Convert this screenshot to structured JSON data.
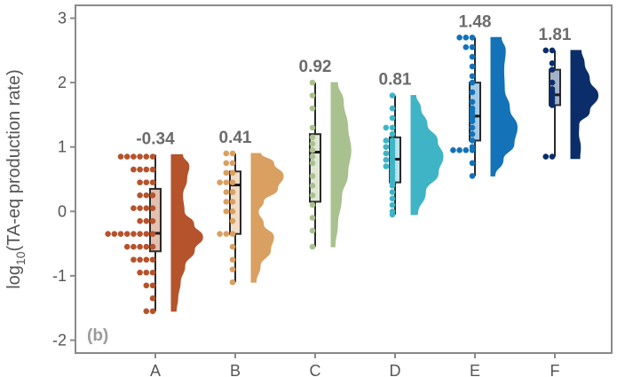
{
  "chart_data": {
    "type": "raincloud",
    "panel_label": "(b)",
    "ylabel": "log10(TA-eq production rate)",
    "ylabel_parts": {
      "base": "log",
      "sub": "10",
      "rest": "(TA-eq production rate)"
    },
    "ylim": [
      -2.2,
      3.2
    ],
    "yticks": [
      -2,
      -1,
      0,
      1,
      2,
      3
    ],
    "ytick_labels": [
      "-2",
      "-1",
      "0",
      "1",
      "2",
      "3"
    ],
    "grid": false,
    "categories": [
      "A",
      "B",
      "C",
      "D",
      "E",
      "F"
    ],
    "series": [
      {
        "category": "A",
        "color": "#b5532c",
        "median_label": "-0.34",
        "median": -0.34,
        "q1": -0.62,
        "q3": 0.35,
        "whisker_low": -1.55,
        "whisker_high": 0.88,
        "points": [
          0.85,
          0.85,
          0.85,
          0.85,
          0.85,
          0.85,
          0.65,
          0.65,
          0.65,
          0.65,
          0.45,
          0.45,
          0.45,
          0.25,
          0.25,
          0.25,
          0.05,
          0.05,
          0.05,
          0.05,
          -0.15,
          -0.15,
          -0.15,
          -0.35,
          -0.35,
          -0.35,
          -0.35,
          -0.35,
          -0.35,
          -0.35,
          -0.35,
          -0.55,
          -0.55,
          -0.55,
          -0.55,
          -0.55,
          -0.75,
          -0.75,
          -0.75,
          -0.75,
          -0.95,
          -0.95,
          -0.95,
          -1.15,
          -1.15,
          -1.35,
          -1.55,
          -1.55
        ],
        "density": [
          [
            -1.55,
            0.15
          ],
          [
            -1.35,
            0.2
          ],
          [
            -1.1,
            0.28
          ],
          [
            -0.85,
            0.42
          ],
          [
            -0.6,
            0.72
          ],
          [
            -0.4,
            0.98
          ],
          [
            -0.2,
            0.7
          ],
          [
            0,
            0.4
          ],
          [
            0.25,
            0.35
          ],
          [
            0.5,
            0.48
          ],
          [
            0.7,
            0.55
          ],
          [
            0.88,
            0.35
          ]
        ]
      },
      {
        "category": "B",
        "color": "#d9a062",
        "median_label": "0.41",
        "median": 0.41,
        "q1": -0.35,
        "q3": 0.62,
        "whisker_low": -1.1,
        "whisker_high": 0.9,
        "points": [
          0.9,
          0.9,
          0.75,
          0.75,
          0.6,
          0.6,
          0.45,
          0.45,
          0.45,
          0.3,
          0.3,
          0.15,
          0.15,
          0,
          0,
          -0.15,
          -0.35,
          -0.35,
          -0.35,
          -0.55,
          -0.75,
          -0.9,
          -1.1
        ],
        "density": [
          [
            -1.1,
            0.15
          ],
          [
            -0.85,
            0.28
          ],
          [
            -0.6,
            0.6
          ],
          [
            -0.4,
            0.7
          ],
          [
            -0.2,
            0.38
          ],
          [
            0,
            0.22
          ],
          [
            0.15,
            0.38
          ],
          [
            0.35,
            0.82
          ],
          [
            0.55,
            1.0
          ],
          [
            0.75,
            0.7
          ],
          [
            0.9,
            0.3
          ]
        ]
      },
      {
        "category": "C",
        "color": "#a9c18e",
        "median_label": "0.92",
        "median": 0.92,
        "q1": 0.15,
        "q3": 1.2,
        "whisker_low": -0.55,
        "whisker_high": 2.0,
        "points": [
          2.0,
          1.8,
          1.6,
          1.3,
          1.15,
          1.05,
          0.95,
          0.85,
          0.75,
          0.55,
          0.4,
          0.25,
          0.1,
          -0.1,
          -0.3,
          -0.55
        ],
        "density": [
          [
            -0.55,
            0.12
          ],
          [
            -0.2,
            0.2
          ],
          [
            0.2,
            0.32
          ],
          [
            0.6,
            0.52
          ],
          [
            0.95,
            0.62
          ],
          [
            1.3,
            0.52
          ],
          [
            1.7,
            0.38
          ],
          [
            2.0,
            0.2
          ]
        ]
      },
      {
        "category": "D",
        "color": "#3fb4c6",
        "median_label": "0.81",
        "median": 0.81,
        "q1": 0.45,
        "q3": 1.15,
        "whisker_low": -0.05,
        "whisker_high": 1.8,
        "points": [
          1.8,
          1.6,
          1.45,
          1.3,
          1.3,
          1.2,
          1.1,
          1.1,
          1.05,
          1.0,
          1.0,
          0.95,
          0.9,
          0.9,
          0.85,
          0.8,
          0.8,
          0.75,
          0.7,
          0.7,
          0.65,
          0.6,
          0.55,
          0.5,
          0.45,
          0.4,
          0.3,
          0.2,
          0.1,
          0.0,
          -0.05
        ],
        "density": [
          [
            -0.05,
            0.2
          ],
          [
            0.3,
            0.45
          ],
          [
            0.6,
            0.85
          ],
          [
            0.85,
            1.0
          ],
          [
            1.1,
            0.82
          ],
          [
            1.35,
            0.5
          ],
          [
            1.6,
            0.3
          ],
          [
            1.8,
            0.15
          ]
        ]
      },
      {
        "category": "E",
        "color": "#1372b8",
        "median_label": "1.48",
        "median": 1.48,
        "q1": 1.1,
        "q3": 2.0,
        "whisker_low": 0.55,
        "whisker_high": 2.7,
        "points": [
          2.7,
          2.7,
          2.7,
          2.55,
          2.55,
          2.4,
          2.25,
          2.1,
          2.0,
          1.85,
          1.7,
          1.6,
          1.55,
          1.5,
          1.45,
          1.4,
          1.3,
          1.2,
          1.1,
          1.0,
          0.95,
          0.95,
          0.95,
          0.95,
          0.75,
          0.55
        ],
        "density": [
          [
            0.55,
            0.12
          ],
          [
            0.8,
            0.38
          ],
          [
            1.05,
            0.72
          ],
          [
            1.3,
            0.82
          ],
          [
            1.6,
            0.58
          ],
          [
            1.9,
            0.42
          ],
          [
            2.2,
            0.4
          ],
          [
            2.5,
            0.45
          ],
          [
            2.7,
            0.32
          ]
        ]
      },
      {
        "category": "F",
        "color": "#0b2e6b",
        "median_label": "1.81",
        "median": 1.81,
        "q1": 1.65,
        "q3": 2.2,
        "whisker_low": 0.85,
        "whisker_high": 2.5,
        "points": [
          2.5,
          2.5,
          2.3,
          2.2,
          2.0,
          1.9,
          1.85,
          1.8,
          1.75,
          1.7,
          1.65,
          0.85,
          0.85
        ],
        "density": [
          [
            0.82,
            0.28
          ],
          [
            1.0,
            0.3
          ],
          [
            1.2,
            0.24
          ],
          [
            1.35,
            0.25
          ],
          [
            1.55,
            0.58
          ],
          [
            1.8,
            0.85
          ],
          [
            2.05,
            0.58
          ],
          [
            2.3,
            0.42
          ],
          [
            2.5,
            0.32
          ]
        ]
      }
    ]
  }
}
